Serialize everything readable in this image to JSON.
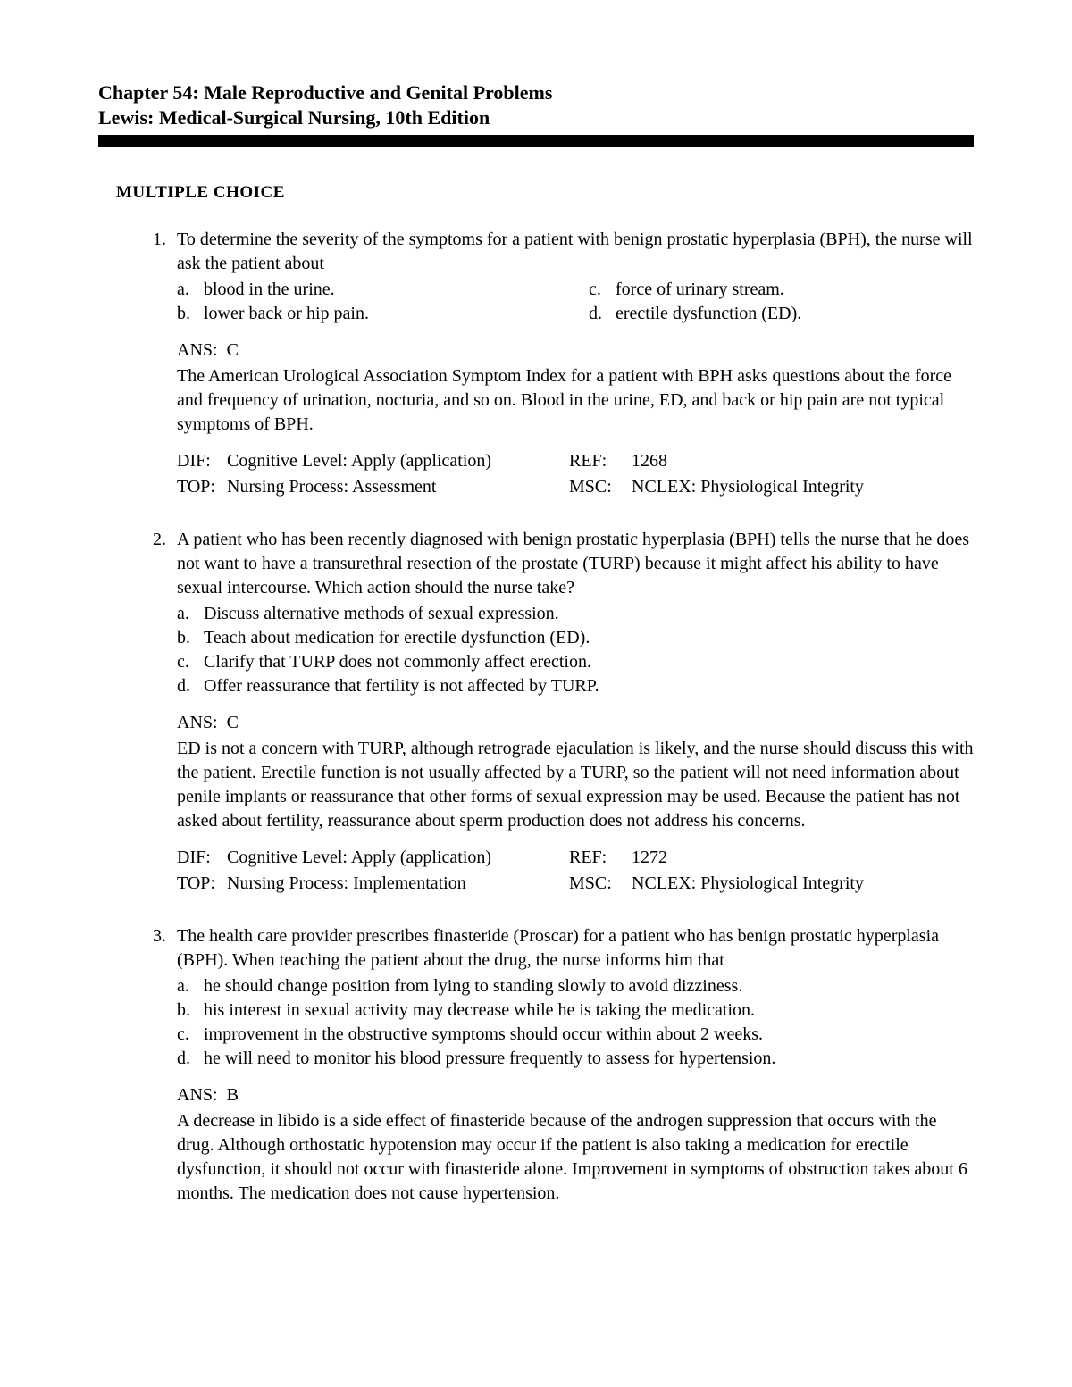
{
  "header": {
    "chapter": "Chapter 54: Male Reproductive and Genital Problems",
    "book": "Lewis: Medical-Surgical Nursing, 10th Edition"
  },
  "section_heading": "MULTIPLE CHOICE",
  "questions": [
    {
      "number": "1.",
      "stem": "To determine the severity of the symptoms for a patient with benign prostatic hyperplasia (BPH), the nurse will ask the patient about",
      "layout": "two-col",
      "options": [
        {
          "letter": "a.",
          "text": "blood in the urine."
        },
        {
          "letter": "b.",
          "text": "lower back or hip pain."
        },
        {
          "letter": "c.",
          "text": "force of urinary stream."
        },
        {
          "letter": "d.",
          "text": "erectile dysfunction (ED)."
        }
      ],
      "answer_label": "ANS:",
      "answer": "C",
      "rationale": "The American Urological Association Symptom Index for a patient with BPH asks questions about the force and frequency of urination, nocturia, and so on. Blood in the urine, ED, and back or hip pain are not typical symptoms of BPH.",
      "meta": {
        "dif_label": "DIF:",
        "dif": "Cognitive Level: Apply (application)",
        "ref_label": "REF:",
        "ref": "1268",
        "top_label": "TOP:",
        "top": "Nursing Process: Assessment",
        "msc_label": "MSC:",
        "msc": "NCLEX: Physiological Integrity"
      }
    },
    {
      "number": "2.",
      "stem": "A patient who has been recently diagnosed with benign prostatic hyperplasia (BPH) tells the nurse that he does not want to have a transurethral resection of the prostate (TURP) because it might affect his ability to have sexual intercourse. Which action should the nurse take?",
      "layout": "one-col",
      "options": [
        {
          "letter": "a.",
          "text": "Discuss alternative methods of sexual expression."
        },
        {
          "letter": "b.",
          "text": "Teach about medication for erectile dysfunction (ED)."
        },
        {
          "letter": "c.",
          "text": "Clarify that TURP does not commonly affect erection."
        },
        {
          "letter": "d.",
          "text": "Offer reassurance that fertility is not affected by TURP."
        }
      ],
      "answer_label": "ANS:",
      "answer": "C",
      "rationale": "ED is not a concern with TURP, although retrograde ejaculation is likely, and the nurse should discuss this with the patient. Erectile function is not usually affected by a TURP, so the patient will not need information about penile implants or reassurance that other forms of sexual expression may be used. Because the patient has not asked about fertility, reassurance about sperm production does not address his concerns.",
      "meta": {
        "dif_label": "DIF:",
        "dif": "Cognitive Level: Apply (application)",
        "ref_label": "REF:",
        "ref": "1272",
        "top_label": "TOP:",
        "top": "Nursing Process: Implementation",
        "msc_label": "MSC:",
        "msc": "NCLEX: Physiological Integrity"
      }
    },
    {
      "number": "3.",
      "stem": "The health care provider prescribes finasteride (Proscar) for a patient who has benign prostatic hyperplasia (BPH). When teaching the patient about the drug, the nurse informs him that",
      "layout": "one-col",
      "options": [
        {
          "letter": "a.",
          "text": "he should change position from lying to standing slowly to avoid dizziness."
        },
        {
          "letter": "b.",
          "text": "his interest in sexual activity may decrease while he is taking the medication."
        },
        {
          "letter": "c.",
          "text": "improvement in the obstructive symptoms should occur within about 2 weeks."
        },
        {
          "letter": "d.",
          "text": "he will need to monitor his blood pressure frequently to assess for hypertension."
        }
      ],
      "answer_label": "ANS:",
      "answer": "B",
      "rationale": "A decrease in libido is a side effect of finasteride because of the androgen suppression that occurs with the drug. Although orthostatic hypotension may occur if the patient is also taking a medication for erectile dysfunction, it should not occur with finasteride alone. Improvement in symptoms of obstruction takes about 6 months. The medication does not cause hypertension.",
      "meta": null
    }
  ]
}
